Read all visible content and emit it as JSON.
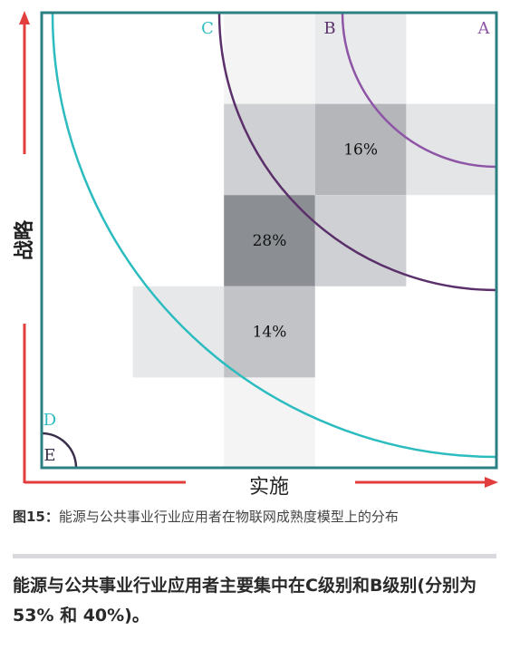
{
  "chart_data": {
    "type": "heatmap",
    "xlabel": "实施",
    "ylabel": "战略",
    "grid_columns": 5,
    "grid_rows": 5,
    "cells": [
      {
        "col": 2,
        "row": 0,
        "shade": "#f4f4f5",
        "label": ""
      },
      {
        "col": 3,
        "row": 0,
        "shade": "#e9eaeb",
        "label": ""
      },
      {
        "col": 2,
        "row": 1,
        "shade": "#cfd0d3",
        "label": ""
      },
      {
        "col": 3,
        "row": 1,
        "shade": "#b4b6ba",
        "label": "16%"
      },
      {
        "col": 4,
        "row": 1,
        "shade": "#e4e5e7",
        "label": ""
      },
      {
        "col": 2,
        "row": 2,
        "shade": "#8b8f94",
        "label": "28%"
      },
      {
        "col": 3,
        "row": 2,
        "shade": "#cfd0d3",
        "label": ""
      },
      {
        "col": 1,
        "row": 3,
        "shade": "#e7e8ea",
        "label": ""
      },
      {
        "col": 2,
        "row": 3,
        "shade": "#c1c3c7",
        "label": "14%"
      },
      {
        "col": 2,
        "row": 4,
        "shade": "#f4f4f5",
        "label": ""
      }
    ],
    "levels": [
      {
        "name": "A",
        "color": "#8e55a6"
      },
      {
        "name": "B",
        "color": "#5b2f6a"
      },
      {
        "name": "C",
        "color": "#2cbcc0"
      },
      {
        "name": "D",
        "color": "#2cbcc0"
      },
      {
        "name": "E",
        "color": "#3a2e4a"
      }
    ],
    "colors": {
      "frame": "#2c7f82",
      "axis_arrow": "#e23e3e"
    }
  },
  "caption": {
    "figure_label": "图15：",
    "text": "能源与公共事业行业应用者在物联网成熟度模型上的分布"
  },
  "summary": "能源与公共事业行业应用者主要集中在C级别和B级别(分别为53% 和 40%)。"
}
